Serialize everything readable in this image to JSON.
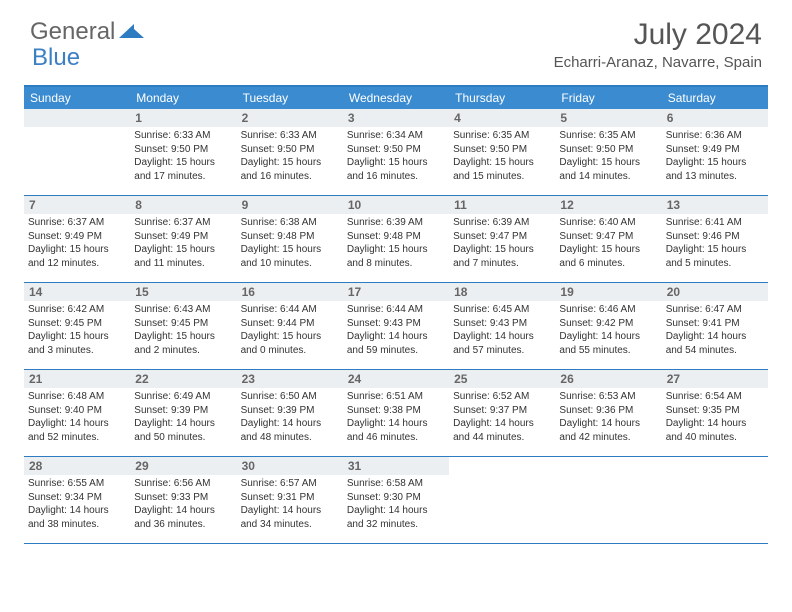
{
  "logo": {
    "text1": "General",
    "text2": "Blue"
  },
  "title": "July 2024",
  "location": "Echarri-Aranaz, Navarre, Spain",
  "colors": {
    "header_bg": "#3b8bd0",
    "border": "#2d7bc0",
    "daynum_bg": "#eceff1",
    "text": "#333333",
    "title_color": "#555555"
  },
  "weekdays": [
    "Sunday",
    "Monday",
    "Tuesday",
    "Wednesday",
    "Thursday",
    "Friday",
    "Saturday"
  ],
  "start_offset": 1,
  "days": [
    {
      "n": 1,
      "sunrise": "6:33 AM",
      "sunset": "9:50 PM",
      "daylight": "15 hours and 17 minutes."
    },
    {
      "n": 2,
      "sunrise": "6:33 AM",
      "sunset": "9:50 PM",
      "daylight": "15 hours and 16 minutes."
    },
    {
      "n": 3,
      "sunrise": "6:34 AM",
      "sunset": "9:50 PM",
      "daylight": "15 hours and 16 minutes."
    },
    {
      "n": 4,
      "sunrise": "6:35 AM",
      "sunset": "9:50 PM",
      "daylight": "15 hours and 15 minutes."
    },
    {
      "n": 5,
      "sunrise": "6:35 AM",
      "sunset": "9:50 PM",
      "daylight": "15 hours and 14 minutes."
    },
    {
      "n": 6,
      "sunrise": "6:36 AM",
      "sunset": "9:49 PM",
      "daylight": "15 hours and 13 minutes."
    },
    {
      "n": 7,
      "sunrise": "6:37 AM",
      "sunset": "9:49 PM",
      "daylight": "15 hours and 12 minutes."
    },
    {
      "n": 8,
      "sunrise": "6:37 AM",
      "sunset": "9:49 PM",
      "daylight": "15 hours and 11 minutes."
    },
    {
      "n": 9,
      "sunrise": "6:38 AM",
      "sunset": "9:48 PM",
      "daylight": "15 hours and 10 minutes."
    },
    {
      "n": 10,
      "sunrise": "6:39 AM",
      "sunset": "9:48 PM",
      "daylight": "15 hours and 8 minutes."
    },
    {
      "n": 11,
      "sunrise": "6:39 AM",
      "sunset": "9:47 PM",
      "daylight": "15 hours and 7 minutes."
    },
    {
      "n": 12,
      "sunrise": "6:40 AM",
      "sunset": "9:47 PM",
      "daylight": "15 hours and 6 minutes."
    },
    {
      "n": 13,
      "sunrise": "6:41 AM",
      "sunset": "9:46 PM",
      "daylight": "15 hours and 5 minutes."
    },
    {
      "n": 14,
      "sunrise": "6:42 AM",
      "sunset": "9:45 PM",
      "daylight": "15 hours and 3 minutes."
    },
    {
      "n": 15,
      "sunrise": "6:43 AM",
      "sunset": "9:45 PM",
      "daylight": "15 hours and 2 minutes."
    },
    {
      "n": 16,
      "sunrise": "6:44 AM",
      "sunset": "9:44 PM",
      "daylight": "15 hours and 0 minutes."
    },
    {
      "n": 17,
      "sunrise": "6:44 AM",
      "sunset": "9:43 PM",
      "daylight": "14 hours and 59 minutes."
    },
    {
      "n": 18,
      "sunrise": "6:45 AM",
      "sunset": "9:43 PM",
      "daylight": "14 hours and 57 minutes."
    },
    {
      "n": 19,
      "sunrise": "6:46 AM",
      "sunset": "9:42 PM",
      "daylight": "14 hours and 55 minutes."
    },
    {
      "n": 20,
      "sunrise": "6:47 AM",
      "sunset": "9:41 PM",
      "daylight": "14 hours and 54 minutes."
    },
    {
      "n": 21,
      "sunrise": "6:48 AM",
      "sunset": "9:40 PM",
      "daylight": "14 hours and 52 minutes."
    },
    {
      "n": 22,
      "sunrise": "6:49 AM",
      "sunset": "9:39 PM",
      "daylight": "14 hours and 50 minutes."
    },
    {
      "n": 23,
      "sunrise": "6:50 AM",
      "sunset": "9:39 PM",
      "daylight": "14 hours and 48 minutes."
    },
    {
      "n": 24,
      "sunrise": "6:51 AM",
      "sunset": "9:38 PM",
      "daylight": "14 hours and 46 minutes."
    },
    {
      "n": 25,
      "sunrise": "6:52 AM",
      "sunset": "9:37 PM",
      "daylight": "14 hours and 44 minutes."
    },
    {
      "n": 26,
      "sunrise": "6:53 AM",
      "sunset": "9:36 PM",
      "daylight": "14 hours and 42 minutes."
    },
    {
      "n": 27,
      "sunrise": "6:54 AM",
      "sunset": "9:35 PM",
      "daylight": "14 hours and 40 minutes."
    },
    {
      "n": 28,
      "sunrise": "6:55 AM",
      "sunset": "9:34 PM",
      "daylight": "14 hours and 38 minutes."
    },
    {
      "n": 29,
      "sunrise": "6:56 AM",
      "sunset": "9:33 PM",
      "daylight": "14 hours and 36 minutes."
    },
    {
      "n": 30,
      "sunrise": "6:57 AM",
      "sunset": "9:31 PM",
      "daylight": "14 hours and 34 minutes."
    },
    {
      "n": 31,
      "sunrise": "6:58 AM",
      "sunset": "9:30 PM",
      "daylight": "14 hours and 32 minutes."
    }
  ],
  "labels": {
    "sunrise": "Sunrise:",
    "sunset": "Sunset:",
    "daylight": "Daylight:"
  }
}
